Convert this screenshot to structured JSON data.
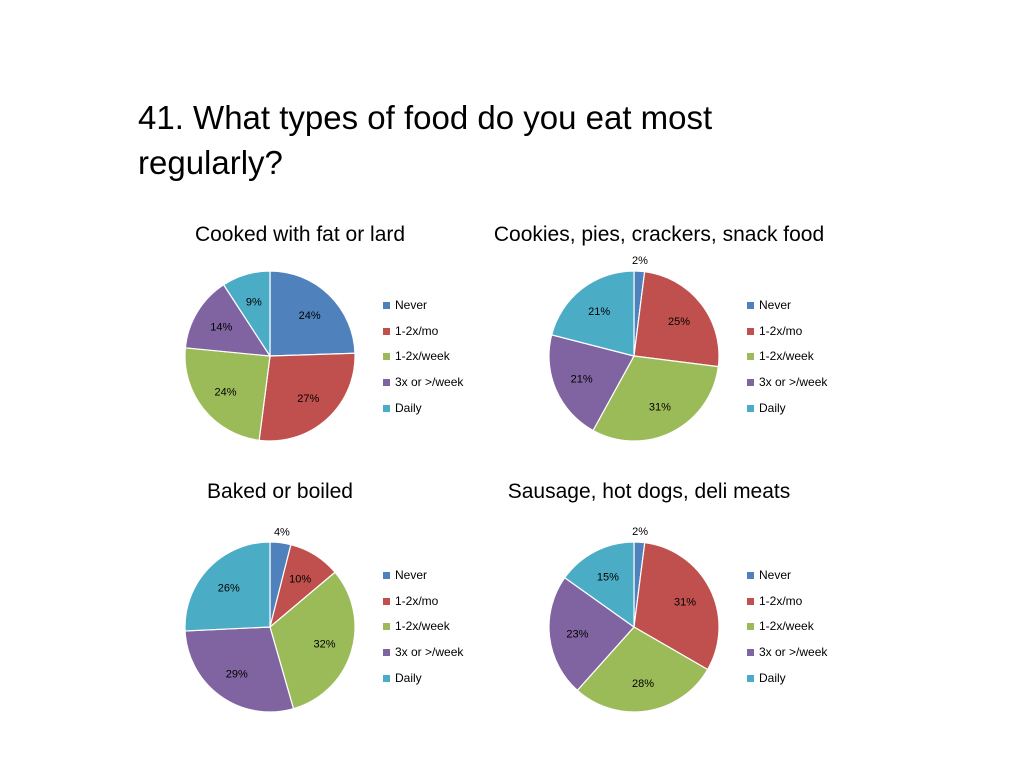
{
  "page_title": "41. What types of food do you eat most regularly?",
  "colors": [
    "#4F81BD",
    "#C0504D",
    "#9BBB59",
    "#8064A2",
    "#4BACC6"
  ],
  "legend": [
    "Never",
    "1-2x/mo",
    "1-2x/week",
    "3x or >/week",
    "Daily"
  ],
  "chart_data": [
    {
      "type": "pie",
      "title": "Cooked with fat or lard",
      "categories": [
        "Never",
        "1-2x/mo",
        "1-2x/week",
        "3x or >/week",
        "Daily"
      ],
      "values": [
        24,
        27,
        24,
        14,
        9
      ],
      "labels": [
        "24%",
        "27%",
        "24%",
        "14%",
        "9%"
      ]
    },
    {
      "type": "pie",
      "title": "Cookies, pies, crackers, snack food",
      "categories": [
        "Never",
        "1-2x/mo",
        "1-2x/week",
        "3x or >/week",
        "Daily"
      ],
      "values": [
        2,
        25,
        31,
        21,
        21
      ],
      "labels": [
        "2%",
        "25%",
        "31%",
        "21%",
        "21%"
      ]
    },
    {
      "type": "pie",
      "title": "Baked or boiled",
      "categories": [
        "Never",
        "1-2x/mo",
        "1-2x/week",
        "3x or >/week",
        "Daily"
      ],
      "values": [
        4,
        10,
        32,
        29,
        26
      ],
      "labels": [
        "4%",
        "10%",
        "32%",
        "29%",
        "26%"
      ]
    },
    {
      "type": "pie",
      "title": "Sausage, hot dogs, deli meats",
      "categories": [
        "Never",
        "1-2x/mo",
        "1-2x/week",
        "3x or >/week",
        "Daily"
      ],
      "values": [
        2,
        31,
        28,
        23,
        15
      ],
      "labels": [
        "2%",
        "31%",
        "28%",
        "23%",
        "15%"
      ]
    }
  ]
}
